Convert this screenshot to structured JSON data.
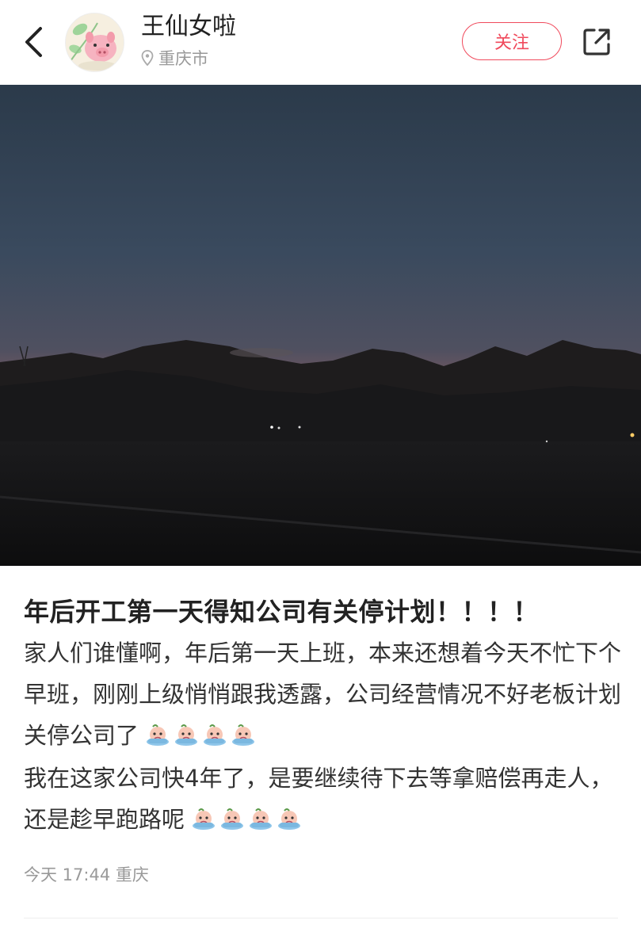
{
  "header": {
    "back_icon": "chevron-left-icon",
    "username": "王仙女啦",
    "location": "重庆市",
    "follow_label": "关注",
    "share_icon": "share-icon",
    "accent_color": "#f04a5c"
  },
  "post": {
    "image_alt": "mountain-sunset-photo",
    "title": "年后开工第一天得知公司有关停计划！！！！",
    "paragraph1": "家人们谁懂啊，年后第一天上班，本来还想着今天不忙下个早班，刚刚上级悄悄跟我透露，公司经营情况不好老板计划关停公司了",
    "paragraph2": "我在这家公司快4年了，是要继续待下去等拿赔偿再走人，还是趁早跑路呢",
    "emoji_name": "crying-emoji",
    "emoji_count_per_paragraph": 4,
    "meta": "今天 17:44 重庆"
  }
}
